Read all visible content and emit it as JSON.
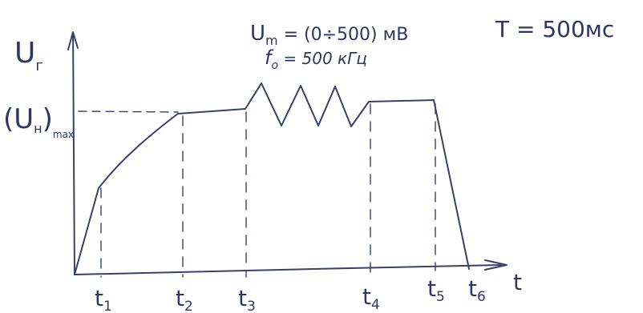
{
  "header": {
    "um_label": "U",
    "um_sub": "m",
    "um_value": " = (0÷500) мВ",
    "f0_label": "f",
    "f0_sub": "o",
    "f0_value": " = 500 кГц",
    "period": "T = 500мс"
  },
  "axes": {
    "y_label": "U",
    "y_sub": "г",
    "y_level_main": "(U",
    "y_level_sub": "н",
    "y_level_close": ")",
    "y_level_max": "max",
    "x_label": "t"
  },
  "ticks": [
    {
      "main": "t",
      "sub": "1"
    },
    {
      "main": "t",
      "sub": "2"
    },
    {
      "main": "t",
      "sub": "3"
    },
    {
      "main": "t",
      "sub": "4"
    },
    {
      "main": "t",
      "sub": "5"
    },
    {
      "main": "t",
      "sub": "6"
    }
  ],
  "colors": {
    "ink": "#3a3f6b"
  }
}
